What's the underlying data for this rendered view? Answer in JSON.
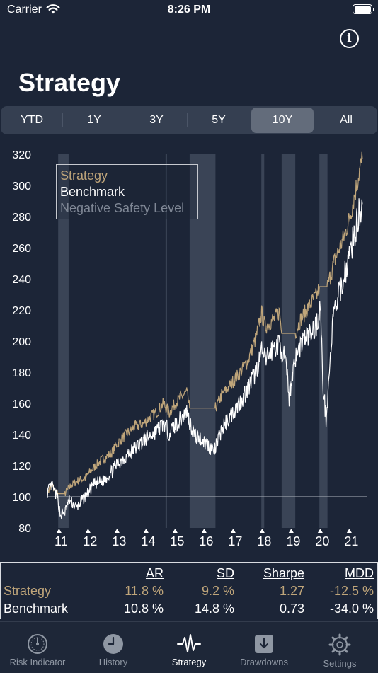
{
  "status": {
    "carrier": "Carrier",
    "time": "8:26 PM"
  },
  "info": {
    "label": "i"
  },
  "title": "Strategy",
  "periods": [
    "YTD",
    "1Y",
    "3Y",
    "5Y",
    "10Y",
    "All"
  ],
  "selected_period": "10Y",
  "legend": [
    "Strategy",
    "Benchmark",
    "Negative Safety Level"
  ],
  "colors": {
    "background": "#1c2537",
    "strategy": "#bfa57a",
    "benchmark": "#ffffff",
    "negative_safety": "#7f8795",
    "shade": "#3a4456"
  },
  "chart_data": {
    "type": "line",
    "x_axis": "year",
    "xlim": [
      2010.6,
      2021.6
    ],
    "ylim": [
      80,
      320
    ],
    "y_ticks": [
      80,
      100,
      120,
      140,
      160,
      180,
      200,
      220,
      240,
      260,
      280,
      300,
      320
    ],
    "x_tick_labels": [
      "11",
      "12",
      "13",
      "14",
      "15",
      "16",
      "17",
      "18",
      "19",
      "20",
      "21"
    ],
    "x_tick_years": [
      2011,
      2012,
      2013,
      2014,
      2015,
      2016,
      2017,
      2018,
      2019,
      2020,
      2021
    ],
    "negative_safety_level": 100,
    "grid": false,
    "legend_position": "top-left",
    "risk_off_periods": [
      [
        2010.97,
        2011.33
      ],
      [
        2014.67,
        2014.72
      ],
      [
        2015.5,
        2016.39
      ],
      [
        2017.97,
        2018.07
      ],
      [
        2018.67,
        2019.14
      ],
      [
        2019.97,
        2020.25
      ]
    ],
    "series": [
      {
        "name": "Strategy",
        "x": [
          2010.6,
          2010.75,
          2010.95,
          2011.2,
          2011.4,
          2011.6,
          2011.9,
          2012.2,
          2012.5,
          2012.8,
          2013.0,
          2013.3,
          2013.6,
          2013.9,
          2014.2,
          2014.4,
          2014.6,
          2014.8,
          2015.0,
          2015.2,
          2015.4,
          2015.5,
          2016.39,
          2016.6,
          2016.9,
          2017.2,
          2017.5,
          2017.8,
          2017.98,
          2018.1,
          2018.4,
          2018.6,
          2018.67,
          2019.14,
          2019.3,
          2019.6,
          2019.9,
          2019.97,
          2020.25,
          2020.5,
          2020.8,
          2021.0,
          2021.2,
          2021.35,
          2021.45
        ],
        "values": [
          103,
          107,
          102,
          102,
          107,
          110,
          112,
          119,
          124,
          128,
          134,
          140,
          145,
          147,
          152,
          155,
          160,
          154,
          160,
          164,
          167,
          157,
          157,
          165,
          172,
          179,
          187,
          203,
          218,
          209,
          214,
          219,
          205,
          205,
          213,
          222,
          230,
          235,
          235,
          252,
          266,
          278,
          295,
          309,
          317
        ]
      },
      {
        "name": "Benchmark",
        "x": [
          2010.6,
          2010.75,
          2010.95,
          2011.05,
          2011.2,
          2011.35,
          2011.6,
          2011.9,
          2012.2,
          2012.5,
          2012.8,
          2013.0,
          2013.3,
          2013.6,
          2013.9,
          2014.2,
          2014.4,
          2014.6,
          2014.8,
          2015.0,
          2015.2,
          2015.4,
          2015.5,
          2015.7,
          2015.9,
          2016.1,
          2016.35,
          2016.6,
          2016.9,
          2017.2,
          2017.5,
          2017.8,
          2017.98,
          2018.1,
          2018.4,
          2018.6,
          2018.8,
          2018.93,
          2019.1,
          2019.4,
          2019.7,
          2019.9,
          2020.0,
          2020.1,
          2020.2,
          2020.45,
          2020.8,
          2021.0,
          2021.2,
          2021.35,
          2021.45
        ],
        "values": [
          103,
          107,
          99,
          88,
          90,
          98,
          93,
          100,
          108,
          110,
          116,
          121,
          126,
          131,
          136,
          140,
          143,
          147,
          141,
          146,
          150,
          155,
          148,
          139,
          137,
          134,
          129,
          143,
          152,
          160,
          169,
          181,
          193,
          188,
          196,
          198,
          187,
          164,
          187,
          201,
          205,
          212,
          223,
          170,
          150,
          216,
          240,
          255,
          270,
          283,
          288
        ]
      }
    ]
  },
  "stats": {
    "headers": [
      "AR",
      "SD",
      "Sharpe",
      "MDD"
    ],
    "rows": [
      {
        "name": "Strategy",
        "ar": "11.8 %",
        "sd": "9.2 %",
        "sharpe": "1.27",
        "mdd": "-12.5 %"
      },
      {
        "name": "Benchmark",
        "ar": "10.8 %",
        "sd": "14.8 %",
        "sharpe": "0.73",
        "mdd": "-34.0 %"
      }
    ]
  },
  "tabs": [
    {
      "label": "Risk Indicator",
      "icon": "gauge-icon"
    },
    {
      "label": "History",
      "icon": "clock-icon"
    },
    {
      "label": "Strategy",
      "icon": "pulse-icon"
    },
    {
      "label": "Drawdowns",
      "icon": "download-box-icon"
    },
    {
      "label": "Settings",
      "icon": "gear-icon"
    }
  ],
  "active_tab": "Strategy"
}
